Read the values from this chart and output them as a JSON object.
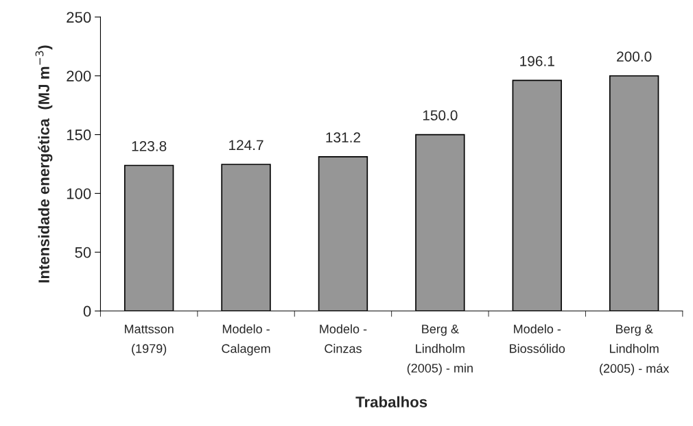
{
  "chart_data": {
    "type": "bar",
    "categories": [
      "Mattsson\n(1979)",
      "Modelo -\nCalagem",
      "Modelo -\nCinzas",
      "Berg &\nLindholm\n(2005) - min",
      "Modelo -\nBiossólido",
      "Berg &\nLindholm\n(2005) - máx"
    ],
    "values": [
      123.8,
      124.7,
      131.2,
      150.0,
      196.1,
      200.0
    ],
    "color": "#969696",
    "xlabel": "Trabalhos",
    "ylabel": "Intensidade energética  (MJ m$^{−3}$)",
    "ylim": [
      0,
      250
    ],
    "yticks": [
      0,
      50,
      100,
      150,
      200,
      250
    ],
    "value_labels": [
      "123.8",
      "124.7",
      "131.2",
      "150.0",
      "196.1",
      "200.0"
    ],
    "grid": false
  }
}
